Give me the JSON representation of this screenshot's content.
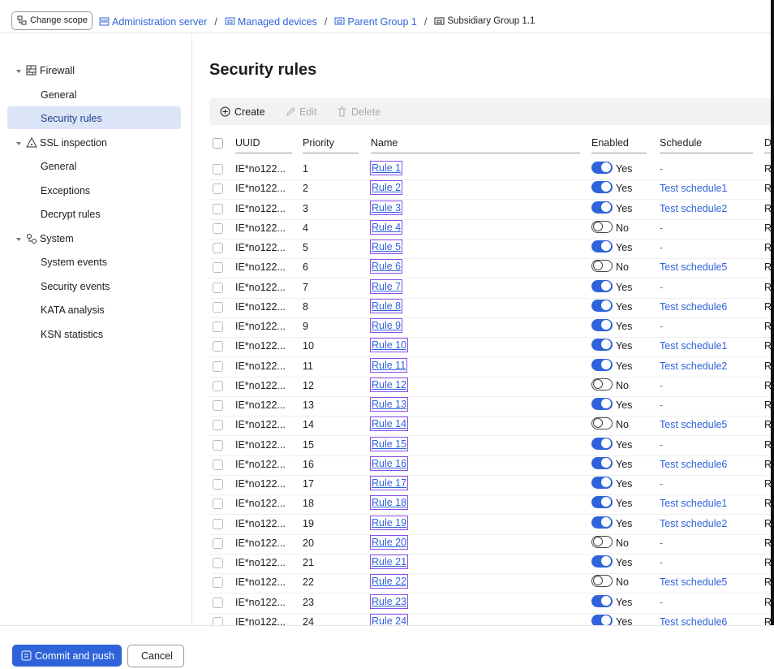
{
  "breadcrumb": {
    "change_scope": "Change scope",
    "items": [
      "Administration server",
      "Managed devices",
      "Parent Group 1",
      "Subsidiary Group 1.1"
    ],
    "separator": "/"
  },
  "sidebar": {
    "groups": [
      {
        "label": "Firewall",
        "items": [
          "General",
          "Security rules"
        ]
      },
      {
        "label": "SSL inspection",
        "items": [
          "General",
          "Exceptions",
          "Decrypt rules"
        ]
      },
      {
        "label": "System",
        "items": [
          "System events",
          "Security events",
          "KATA analysis",
          "KSN statistics"
        ]
      }
    ],
    "selected": {
      "group": 0,
      "item": 1
    }
  },
  "title": "Security rules",
  "toolbar": {
    "create": "Create",
    "edit": "Edit",
    "delete": "Delete"
  },
  "table": {
    "columns": [
      "UUID",
      "Priority",
      "Name",
      "Enabled",
      "Schedule",
      "D"
    ],
    "enabled_labels": [
      "No",
      "Yes"
    ],
    "no_schedule": "-",
    "rows": [
      [
        "IE*no122...",
        1,
        "Rule 1",
        true,
        null,
        "R"
      ],
      [
        "IE*no122...",
        2,
        "Rule 2",
        true,
        "Test schedule1",
        "R"
      ],
      [
        "IE*no122...",
        3,
        "Rule 3",
        true,
        "Test schedule2",
        "R"
      ],
      [
        "IE*no122...",
        4,
        "Rule 4",
        false,
        null,
        "R"
      ],
      [
        "IE*no122...",
        5,
        "Rule 5",
        true,
        null,
        "R"
      ],
      [
        "IE*no122...",
        6,
        "Rule 6",
        false,
        "Test schedule5",
        "R"
      ],
      [
        "IE*no122...",
        7,
        "Rule 7",
        true,
        null,
        "R"
      ],
      [
        "IE*no122...",
        8,
        "Rule 8",
        true,
        "Test schedule6",
        "R"
      ],
      [
        "IE*no122...",
        9,
        "Rule 9",
        true,
        null,
        "R"
      ],
      [
        "IE*no122...",
        10,
        "Rule 10",
        true,
        "Test schedule1",
        "R"
      ],
      [
        "IE*no122...",
        11,
        "Rule 11",
        true,
        "Test schedule2",
        "R"
      ],
      [
        "IE*no122...",
        12,
        "Rule 12",
        false,
        null,
        "R"
      ],
      [
        "IE*no122...",
        13,
        "Rule 13",
        true,
        null,
        "R"
      ],
      [
        "IE*no122...",
        14,
        "Rule 14",
        false,
        "Test schedule5",
        "R"
      ],
      [
        "IE*no122...",
        15,
        "Rule 15",
        true,
        null,
        "R"
      ],
      [
        "IE*no122...",
        16,
        "Rule 16",
        true,
        "Test schedule6",
        "R"
      ],
      [
        "IE*no122...",
        17,
        "Rule 17",
        true,
        null,
        "R"
      ],
      [
        "IE*no122...",
        18,
        "Rule 18",
        true,
        "Test schedule1",
        "R"
      ],
      [
        "IE*no122...",
        19,
        "Rule 19",
        true,
        "Test schedule2",
        "R"
      ],
      [
        "IE*no122...",
        20,
        "Rule 20",
        false,
        null,
        "R"
      ],
      [
        "IE*no122...",
        21,
        "Rule 21",
        true,
        null,
        "R"
      ],
      [
        "IE*no122...",
        22,
        "Rule 22",
        false,
        "Test schedule5",
        "R"
      ],
      [
        "IE*no122...",
        23,
        "Rule 23",
        true,
        null,
        "R"
      ],
      [
        "IE*no122...",
        24,
        "Rule 24",
        true,
        "Test schedule6",
        "R"
      ]
    ]
  },
  "footer": {
    "commit": "Commit and push",
    "cancel": "Cancel"
  }
}
